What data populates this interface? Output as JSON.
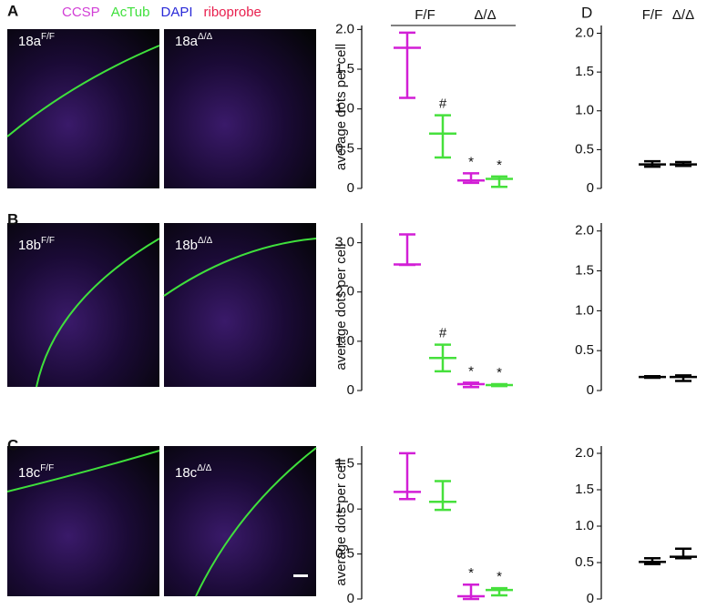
{
  "figure": {
    "panel_labels": [
      "A",
      "B",
      "C",
      "D"
    ],
    "stain_legend": [
      {
        "text": "CCSP",
        "color": "#d23fd6"
      },
      {
        "text": "AcTub",
        "color": "#3fe03c"
      },
      {
        "text": "DAPI",
        "color": "#2a2ad8"
      },
      {
        "text": "riboprobe",
        "color": "#e8204e"
      }
    ],
    "images": [
      {
        "name": "18a",
        "genotype": "F/F"
      },
      {
        "name": "18a",
        "genotype": "Δ/Δ"
      },
      {
        "name": "18b",
        "genotype": "F/F"
      },
      {
        "name": "18b",
        "genotype": "Δ/Δ"
      },
      {
        "name": "18c",
        "genotype": "F/F"
      },
      {
        "name": "18c",
        "genotype": "Δ/Δ"
      }
    ]
  },
  "chart_data": [
    {
      "type": "errorbar",
      "y_label": "average dots per cell",
      "group_labels": [
        "F/F",
        "Δ/Δ"
      ],
      "ylim": [
        0,
        2.05
      ],
      "yticks": [
        0,
        0.5,
        {
          "value": 1,
          "label": "1.0"
        },
        1.5,
        {
          "value": 2,
          "label": "2.0"
        }
      ],
      "points": [
        {
          "color": "#d21fd6",
          "mean": 1.77,
          "low": 1.14,
          "high": 1.96
        },
        {
          "color": "#46e03c",
          "mean": 0.69,
          "low": 0.39,
          "high": 0.92,
          "annotation": "#"
        },
        {
          "color": "#d21fd6",
          "mean": 0.1,
          "low": 0.07,
          "high": 0.19,
          "annotation": "*"
        },
        {
          "color": "#46e03c",
          "mean": 0.12,
          "low": 0.02,
          "high": 0.15,
          "annotation": "*"
        }
      ]
    },
    {
      "type": "errorbar",
      "y_label": "average dots per cell",
      "ylim": [
        0,
        3.4
      ],
      "yticks": [
        0,
        {
          "value": 1,
          "label": "1.0"
        },
        {
          "value": 2,
          "label": "2.0"
        },
        {
          "value": 3,
          "label": "3.0"
        }
      ],
      "points": [
        {
          "color": "#d21fd6",
          "mean": 2.56,
          "low": 2.55,
          "high": 3.17
        },
        {
          "color": "#46e03c",
          "mean": 0.66,
          "low": 0.39,
          "high": 0.93,
          "annotation": "#"
        },
        {
          "color": "#d21fd6",
          "mean": 0.13,
          "low": 0.07,
          "high": 0.16,
          "annotation": "*"
        },
        {
          "color": "#46e03c",
          "mean": 0.11,
          "low": 0.09,
          "high": 0.13,
          "annotation": "*"
        }
      ]
    },
    {
      "type": "errorbar",
      "y_label": "average dots per cell",
      "ylim": [
        0,
        1.7
      ],
      "yticks": [
        0,
        0.5,
        {
          "value": 1,
          "label": "1.0"
        },
        1.5
      ],
      "points": [
        {
          "color": "#d21fd6",
          "mean": 1.19,
          "low": 1.11,
          "high": 1.62
        },
        {
          "color": "#46e03c",
          "mean": 1.08,
          "low": 0.99,
          "high": 1.31
        },
        {
          "color": "#d21fd6",
          "mean": 0.03,
          "low": 0,
          "high": 0.16,
          "annotation": "*"
        },
        {
          "color": "#46e03c",
          "mean": 0.1,
          "low": 0.04,
          "high": 0.12,
          "annotation": "*"
        }
      ]
    },
    {
      "type": "errorbar",
      "group_labels": [
        "F/F",
        "Δ/Δ"
      ],
      "ylim": [
        0,
        2.1
      ],
      "yticks": [
        0,
        0.5,
        {
          "value": 1,
          "label": "1.0"
        },
        1.5,
        {
          "value": 2,
          "label": "2.0"
        }
      ],
      "points": [
        {
          "color": "#000000",
          "mean": 0.31,
          "low": 0.28,
          "high": 0.35
        },
        {
          "color": "#000000",
          "mean": 0.31,
          "low": 0.29,
          "high": 0.34
        }
      ]
    },
    {
      "type": "errorbar",
      "ylim": [
        0,
        2.1
      ],
      "yticks": [
        0,
        0.5,
        {
          "value": 1,
          "label": "1.0"
        },
        1.5,
        {
          "value": 2,
          "label": "2.0"
        }
      ],
      "points": [
        {
          "color": "#000000",
          "mean": 0.17,
          "low": 0.16,
          "high": 0.18
        },
        {
          "color": "#000000",
          "mean": 0.17,
          "low": 0.12,
          "high": 0.19
        }
      ]
    },
    {
      "type": "errorbar",
      "ylim": [
        0,
        2.1
      ],
      "yticks": [
        0,
        0.5,
        {
          "value": 1,
          "label": "1.0"
        },
        1.5,
        {
          "value": 2,
          "label": "2.0"
        }
      ],
      "points": [
        {
          "color": "#000000",
          "mean": 0.51,
          "low": 0.48,
          "high": 0.56
        },
        {
          "color": "#000000",
          "mean": 0.58,
          "low": 0.56,
          "high": 0.69
        }
      ]
    }
  ]
}
